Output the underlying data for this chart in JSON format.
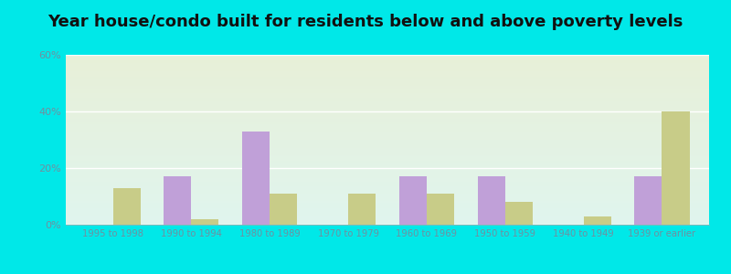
{
  "title": "Year house/condo built for residents below and above poverty levels",
  "categories": [
    "1995 to 1998",
    "1990 to 1994",
    "1980 to 1989",
    "1970 to 1979",
    "1960 to 1969",
    "1950 to 1959",
    "1940 to 1949",
    "1939 or earlier"
  ],
  "below_poverty": [
    0,
    17,
    33,
    0,
    17,
    17,
    0,
    17
  ],
  "above_poverty": [
    13,
    2,
    11,
    11,
    11,
    8,
    3,
    40
  ],
  "below_color": "#c0a0d8",
  "above_color": "#c8cc88",
  "ylim": [
    0,
    60
  ],
  "yticks": [
    0,
    20,
    40,
    60
  ],
  "ytick_labels": [
    "0%",
    "20%",
    "40%",
    "60%"
  ],
  "bg_color_top": "#e0f5ee",
  "bg_color_bottom": "#e8f0d8",
  "outer_bg": "#00e8e8",
  "bar_width": 0.35,
  "gridcolor": "#ffffff",
  "title_fontsize": 13,
  "tick_color": "#7090a0",
  "label_color": "#7090a0"
}
